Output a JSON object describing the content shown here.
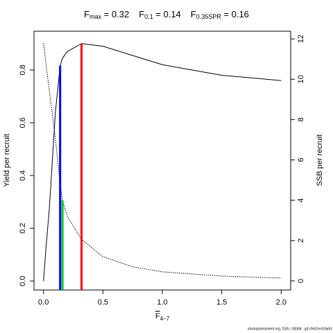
{
  "chart_data": {
    "type": "line",
    "title": [
      {
        "symbol": "F",
        "sub": "max",
        "value": 0.32
      },
      {
        "symbol": "F",
        "sub": "0.1",
        "value": 0.14
      },
      {
        "symbol": "F",
        "sub": "0.35SPR",
        "value": 0.16
      }
    ],
    "reference_lines": [
      {
        "top": 0.9,
        "axis": "y",
        "color": "#ff0000"
      },
      {
        "top": 0.816,
        "axis": "y",
        "color": "#0000ff"
      },
      {
        "top": 4.0,
        "axis": "y2",
        "color": "#00cc00"
      }
    ],
    "xlabel": {
      "symbol": "F",
      "sub": "4−7"
    },
    "ylabel": "Yield per recruit",
    "y2label": "SSB per recruit",
    "footer": "stockassessment.org, f145, r18384 , git:c9c61ec53a0d",
    "x": [
      0,
      0.02,
      0.05,
      0.1,
      0.14,
      0.16,
      0.2,
      0.32,
      0.5,
      0.75,
      1.0,
      1.5,
      2.0
    ],
    "series": [
      {
        "color": "#000000",
        "dash": "solid",
        "axis": "y",
        "values": [
          0,
          0.12,
          0.28,
          0.64,
          0.816,
          0.845,
          0.87,
          0.9,
          0.89,
          0.855,
          0.82,
          0.78,
          0.76
        ]
      },
      {
        "color": "#000000",
        "dash": "dotted",
        "axis": "y2",
        "values": [
          11.8,
          10.8,
          9.4,
          7.05,
          4.8,
          4.0,
          3.2,
          2.06,
          1.2,
          0.7,
          0.45,
          0.24,
          0.14
        ]
      }
    ],
    "xlim": [
      -0.08,
      2.08
    ],
    "ylim": [
      -0.034,
      0.947
    ],
    "y2lim": [
      -0.45,
      12.38
    ],
    "xticks": [
      {
        "value": 0,
        "label": "0.0"
      },
      0.5,
      {
        "value": 1,
        "label": "1.0"
      },
      1.5,
      {
        "value": 2,
        "label": "2.0"
      }
    ],
    "yticks": [
      {
        "value": 0,
        "label": "0.0"
      },
      0.2,
      0.4,
      0.6,
      0.8
    ],
    "y2ticks": [
      0,
      2,
      4,
      6,
      8,
      10,
      12
    ]
  }
}
